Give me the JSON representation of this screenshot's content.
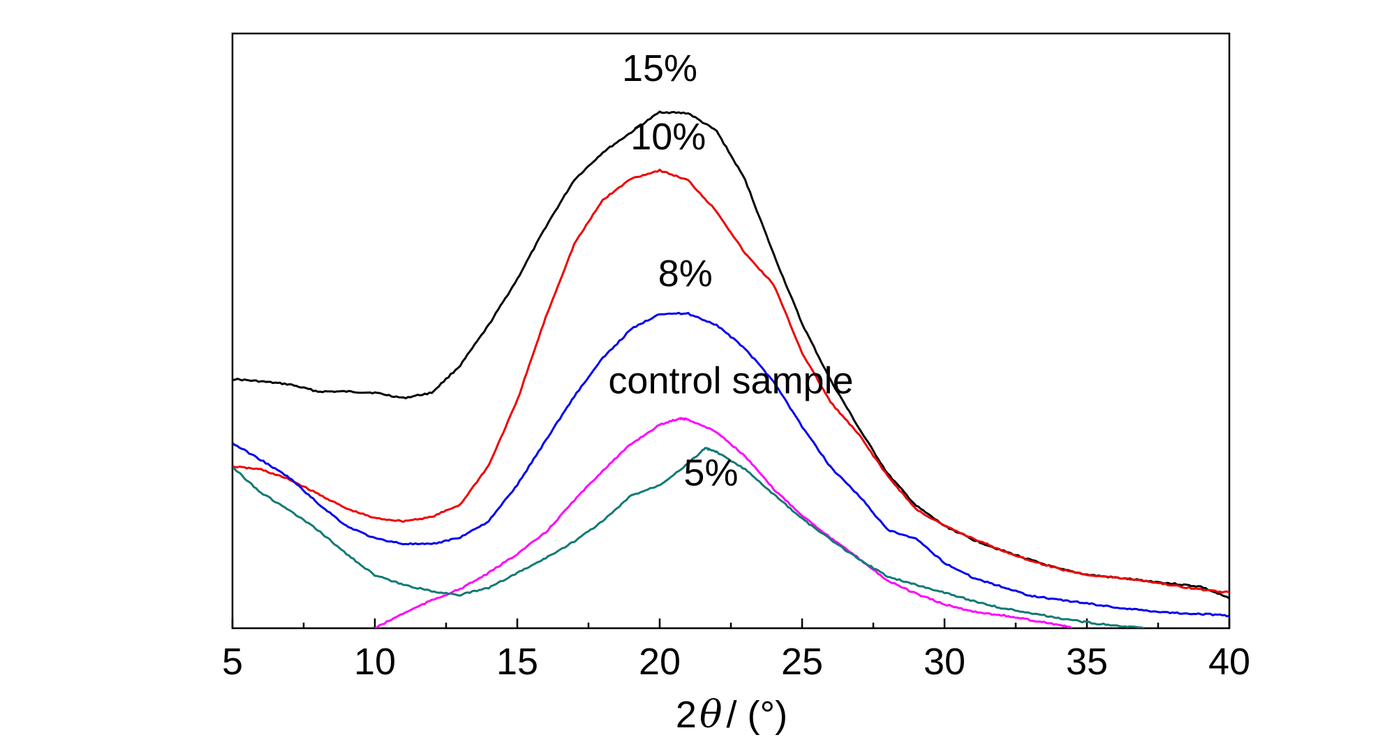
{
  "chart_data": {
    "type": "line",
    "title": "",
    "xlabel_prefix": "2",
    "xlabel_symbol": "θ",
    "xlabel_suffix": "/ (°)",
    "ylabel": "",
    "xlim": [
      5,
      40
    ],
    "ylim": [
      0,
      1
    ],
    "y_ticks_shown": false,
    "grid": false,
    "x_ticks": [
      5,
      10,
      15,
      20,
      25,
      30,
      35,
      40
    ],
    "x_tick_labels": [
      "5",
      "10",
      "15",
      "20",
      "25",
      "30",
      "35",
      "40"
    ],
    "annotations": [
      {
        "text": "15%",
        "x": 20,
        "y": 0.92,
        "color": "#000000"
      },
      {
        "text": "10%",
        "x": 20.3,
        "y": 0.805,
        "color": "#000000"
      },
      {
        "text": "8%",
        "x": 20.9,
        "y": 0.575,
        "color": "#000000"
      },
      {
        "text": "control sample",
        "x": 22.5,
        "y": 0.395,
        "color": "#000000"
      },
      {
        "text": "5%",
        "x": 21.8,
        "y": 0.24,
        "color": "#000000"
      }
    ],
    "series": [
      {
        "label": "15%",
        "color": "#000000",
        "x": [
          5,
          6,
          7,
          8,
          9,
          10,
          11,
          12,
          13,
          14,
          15,
          16,
          17,
          18,
          19,
          20,
          21,
          22,
          23,
          24,
          25,
          26,
          27,
          28,
          29,
          30,
          31,
          32,
          33,
          34,
          35,
          36,
          37,
          38,
          39,
          40
        ],
        "y": [
          0.419,
          0.415,
          0.41,
          0.398,
          0.398,
          0.396,
          0.387,
          0.396,
          0.442,
          0.51,
          0.587,
          0.675,
          0.754,
          0.8,
          0.834,
          0.868,
          0.866,
          0.836,
          0.754,
          0.629,
          0.512,
          0.417,
          0.336,
          0.26,
          0.206,
          0.172,
          0.149,
          0.131,
          0.115,
          0.1,
          0.09,
          0.085,
          0.08,
          0.075,
          0.07,
          0.05
        ]
      },
      {
        "label": "10%",
        "color": "#ee0000",
        "x": [
          5,
          6,
          7,
          8,
          9,
          10,
          11,
          12,
          13,
          14,
          15,
          16,
          17,
          18,
          19,
          20,
          21,
          22,
          23,
          24,
          25,
          26,
          27,
          28,
          29,
          30,
          31,
          32,
          33,
          34,
          35,
          36,
          37,
          38,
          39,
          40
        ],
        "y": [
          0.272,
          0.267,
          0.25,
          0.226,
          0.201,
          0.185,
          0.18,
          0.187,
          0.208,
          0.274,
          0.383,
          0.523,
          0.646,
          0.72,
          0.756,
          0.77,
          0.753,
          0.701,
          0.63,
          0.578,
          0.463,
          0.38,
          0.325,
          0.256,
          0.2,
          0.172,
          0.151,
          0.131,
          0.114,
          0.1,
          0.09,
          0.085,
          0.08,
          0.072,
          0.065,
          0.06
        ]
      },
      {
        "label": "8%",
        "color": "#0000ee",
        "x": [
          5,
          6,
          7,
          8,
          9,
          10,
          11,
          12,
          13,
          14,
          15,
          16,
          17,
          18,
          19,
          20,
          21,
          22,
          23,
          24,
          25,
          26,
          27,
          28,
          29,
          30,
          31,
          32,
          33,
          34,
          35,
          36,
          37,
          38,
          39,
          40
        ],
        "y": [
          0.311,
          0.283,
          0.253,
          0.21,
          0.172,
          0.151,
          0.142,
          0.141,
          0.153,
          0.18,
          0.241,
          0.316,
          0.39,
          0.454,
          0.503,
          0.529,
          0.529,
          0.51,
          0.47,
          0.415,
          0.339,
          0.271,
          0.223,
          0.165,
          0.15,
          0.11,
          0.085,
          0.07,
          0.055,
          0.048,
          0.042,
          0.035,
          0.03,
          0.026,
          0.024,
          0.021
        ]
      },
      {
        "label": "control sample",
        "color": "#ff00ff",
        "x": [
          10,
          11,
          12,
          13,
          14,
          15,
          16,
          17,
          18,
          19,
          20,
          20.7,
          21,
          22,
          23,
          24,
          25,
          26,
          27,
          28,
          29,
          30,
          31,
          32,
          33,
          34,
          34.5
        ],
        "y": [
          0.0,
          0.025,
          0.047,
          0.066,
          0.093,
          0.125,
          0.161,
          0.215,
          0.265,
          0.31,
          0.342,
          0.353,
          0.351,
          0.33,
          0.289,
          0.234,
          0.19,
          0.152,
          0.117,
          0.08,
          0.058,
          0.04,
          0.028,
          0.022,
          0.014,
          0.006,
          0.0
        ]
      },
      {
        "label": "5%",
        "color": "#117a75",
        "x": [
          5,
          6,
          7,
          8,
          9,
          10,
          11,
          12,
          13,
          14,
          15,
          16,
          17,
          18,
          19,
          20,
          21,
          21.6,
          22,
          23,
          24,
          25,
          26,
          27,
          28,
          29,
          30,
          31,
          32,
          33,
          34,
          35,
          36,
          37
        ],
        "y": [
          0.271,
          0.228,
          0.198,
          0.165,
          0.125,
          0.089,
          0.073,
          0.062,
          0.056,
          0.068,
          0.093,
          0.118,
          0.146,
          0.18,
          0.223,
          0.241,
          0.277,
          0.303,
          0.296,
          0.267,
          0.225,
          0.184,
          0.149,
          0.116,
          0.087,
          0.073,
          0.06,
          0.046,
          0.034,
          0.026,
          0.017,
          0.01,
          0.004,
          0.0
        ]
      }
    ]
  }
}
